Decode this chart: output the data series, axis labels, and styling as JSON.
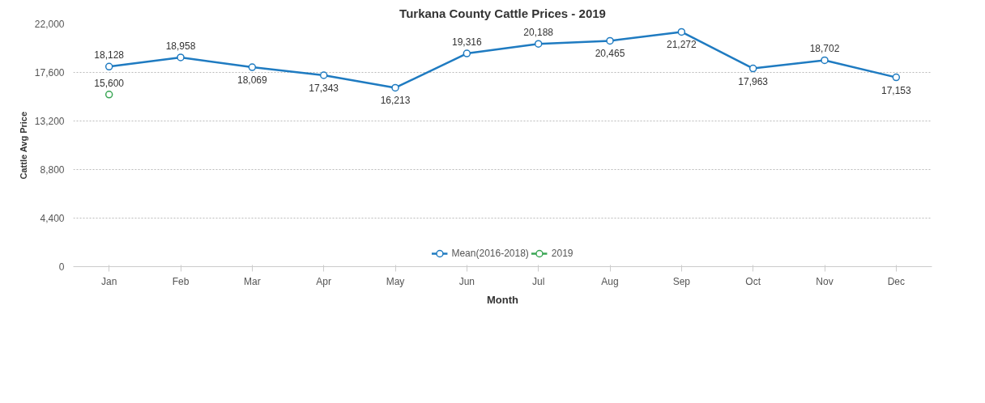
{
  "chart_data": {
    "type": "line",
    "title": "Turkana County Cattle Prices - 2019",
    "xlabel": "Month",
    "ylabel": "Cattle Avg Price",
    "categories": [
      "Jan",
      "Feb",
      "Mar",
      "Apr",
      "May",
      "Jun",
      "Jul",
      "Aug",
      "Sep",
      "Oct",
      "Nov",
      "Dec"
    ],
    "series": [
      {
        "name": "Mean(2016-2018)",
        "color": "#1f7bc1",
        "values": [
          18128,
          18958,
          18069,
          17343,
          16213,
          19316,
          20188,
          20465,
          21272,
          17963,
          18702,
          17153
        ],
        "value_labels": [
          "18,128",
          "18,958",
          "18,069",
          "17,343",
          "16,213",
          "19,316",
          "20,188",
          "20,465",
          "21,272",
          "17,963",
          "18,702",
          "17,153"
        ]
      },
      {
        "name": "2019",
        "color": "#3aa655",
        "values": [
          15600,
          null,
          null,
          null,
          null,
          null,
          null,
          null,
          null,
          null,
          null,
          null
        ],
        "value_labels": [
          "15,600",
          null,
          null,
          null,
          null,
          null,
          null,
          null,
          null,
          null,
          null,
          null
        ]
      }
    ],
    "ylim": [
      0,
      22000
    ],
    "yticks": [
      0,
      {
        "value": 4400,
        "label": "4,400"
      },
      {
        "value": 8800,
        "label": "8,800"
      },
      {
        "value": 13200,
        "label": "13,200"
      },
      {
        "value": 17600,
        "label": "17,600"
      },
      {
        "value": 22000,
        "label": "22,000"
      }
    ],
    "grid": "y",
    "legend": "bottom",
    "marker": "circle",
    "line_style": "solid"
  }
}
